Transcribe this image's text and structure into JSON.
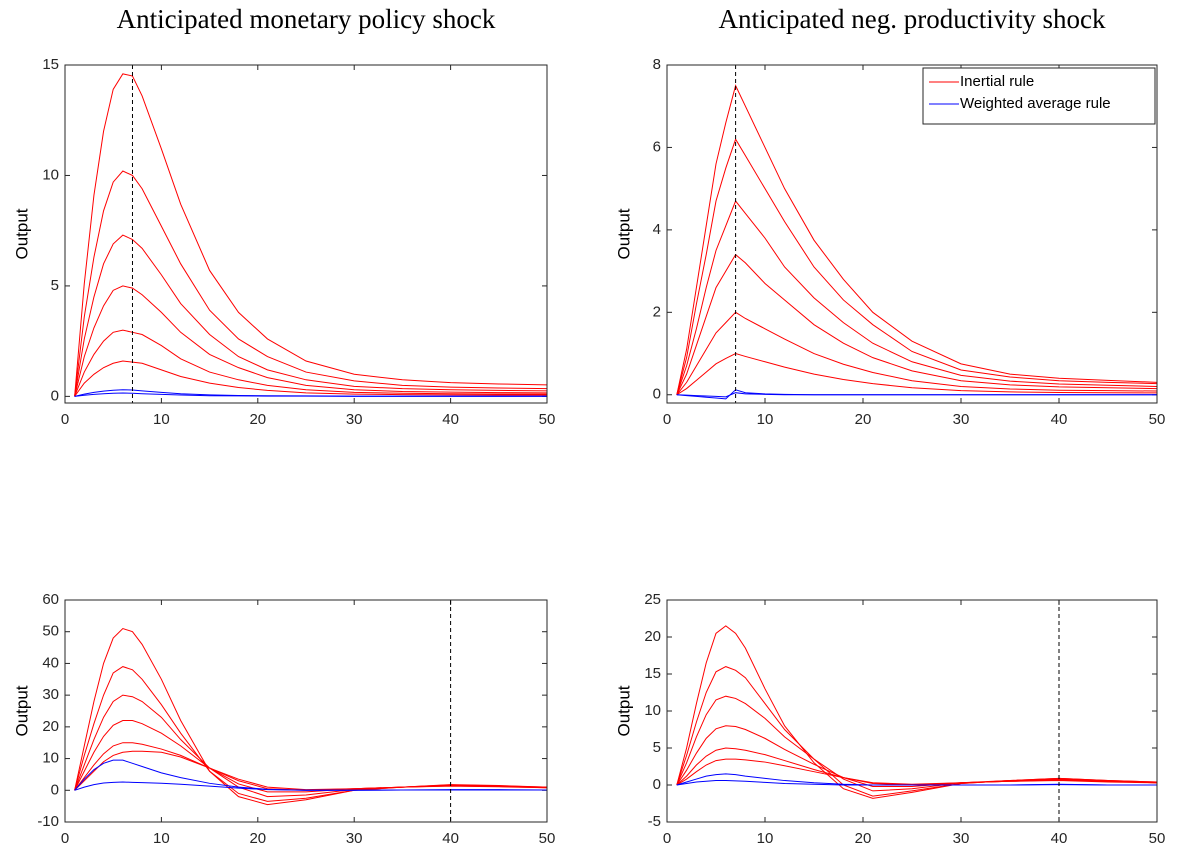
{
  "chart_data": [
    {
      "type": "line",
      "title": "Anticipated monetary policy shock",
      "ylabel": "Output",
      "x": [
        1,
        2,
        3,
        4,
        5,
        6,
        7,
        8,
        10,
        12,
        15,
        18,
        21,
        25,
        30,
        35,
        40,
        45,
        50
      ],
      "xlim": [
        0,
        50
      ],
      "xticks": [
        0,
        10,
        20,
        30,
        40,
        50
      ],
      "ylim": [
        -0.3,
        15
      ],
      "yticks": [
        0,
        5,
        10,
        15
      ],
      "vline": 7,
      "series": [
        {
          "color": "#ff0000",
          "lines": [
            [
              0,
              5.1,
              9.1,
              12.0,
              13.9,
              14.6,
              14.5,
              13.6,
              11.2,
              8.7,
              5.7,
              3.8,
              2.6,
              1.6,
              1.0,
              0.75,
              0.62,
              0.56,
              0.52
            ],
            [
              0,
              3.6,
              6.3,
              8.4,
              9.7,
              10.2,
              10.0,
              9.4,
              7.7,
              6.0,
              3.9,
              2.6,
              1.8,
              1.1,
              0.7,
              0.5,
              0.42,
              0.38,
              0.35
            ],
            [
              0,
              2.6,
              4.5,
              6.0,
              6.9,
              7.3,
              7.1,
              6.7,
              5.5,
              4.2,
              2.8,
              1.8,
              1.2,
              0.75,
              0.45,
              0.35,
              0.3,
              0.27,
              0.25
            ],
            [
              0,
              1.8,
              3.1,
              4.1,
              4.8,
              5.0,
              4.9,
              4.6,
              3.8,
              2.9,
              1.9,
              1.3,
              0.85,
              0.5,
              0.3,
              0.22,
              0.19,
              0.17,
              0.16
            ],
            [
              0,
              1.1,
              1.9,
              2.5,
              2.9,
              3.0,
              2.9,
              2.8,
              2.3,
              1.7,
              1.1,
              0.75,
              0.5,
              0.3,
              0.18,
              0.14,
              0.12,
              0.11,
              0.1
            ],
            [
              0,
              0.6,
              1.0,
              1.3,
              1.5,
              1.6,
              1.55,
              1.5,
              1.2,
              0.9,
              0.6,
              0.4,
              0.27,
              0.16,
              0.1,
              0.08,
              0.07,
              0.06,
              0.06
            ]
          ]
        },
        {
          "color": "#0000ff",
          "lines": [
            [
              0,
              0.1,
              0.18,
              0.24,
              0.28,
              0.3,
              0.29,
              0.25,
              0.18,
              0.12,
              0.07,
              0.04,
              0.03,
              0.02,
              0.01,
              0.01,
              0.01,
              0.01,
              0.01
            ],
            [
              0,
              0.05,
              0.09,
              0.12,
              0.14,
              0.15,
              0.14,
              0.12,
              0.09,
              0.06,
              0.03,
              0.02,
              0.01,
              0.01,
              0,
              0,
              0,
              0,
              0
            ]
          ]
        }
      ]
    },
    {
      "type": "line",
      "title": "Anticipated neg. productivity shock",
      "ylabel": "Output",
      "x": [
        1,
        2,
        3,
        4,
        5,
        6,
        7,
        8,
        10,
        12,
        15,
        18,
        21,
        25,
        30,
        35,
        40,
        45,
        50
      ],
      "xlim": [
        0,
        50
      ],
      "xticks": [
        0,
        10,
        20,
        30,
        40,
        50
      ],
      "ylim": [
        -0.2,
        8
      ],
      "yticks": [
        0,
        2,
        4,
        6,
        8
      ],
      "vline": 7,
      "legend": "upper right",
      "series": [
        {
          "name": "Inertial rule",
          "color": "#ff0000",
          "lines": [
            [
              0,
              1.1,
              2.6,
              4.1,
              5.6,
              6.6,
              7.5,
              7.0,
              6.0,
              5.0,
              3.75,
              2.8,
              2.0,
              1.3,
              0.75,
              0.5,
              0.4,
              0.35,
              0.3
            ],
            [
              0,
              0.9,
              2.2,
              3.4,
              4.7,
              5.5,
              6.2,
              5.8,
              5.0,
              4.2,
              3.1,
              2.3,
              1.7,
              1.05,
              0.6,
              0.43,
              0.34,
              0.3,
              0.27
            ],
            [
              0,
              0.7,
              1.6,
              2.6,
              3.5,
              4.1,
              4.7,
              4.4,
              3.8,
              3.1,
              2.35,
              1.75,
              1.25,
              0.8,
              0.47,
              0.33,
              0.26,
              0.23,
              0.2
            ],
            [
              0,
              0.5,
              1.2,
              1.9,
              2.6,
              3.0,
              3.4,
              3.2,
              2.7,
              2.3,
              1.7,
              1.25,
              0.9,
              0.58,
              0.34,
              0.24,
              0.19,
              0.17,
              0.15
            ],
            [
              0,
              0.3,
              0.7,
              1.1,
              1.5,
              1.75,
              2.0,
              1.85,
              1.6,
              1.35,
              1.0,
              0.74,
              0.54,
              0.34,
              0.2,
              0.14,
              0.11,
              0.1,
              0.09
            ],
            [
              0,
              0.15,
              0.35,
              0.55,
              0.75,
              0.88,
              1.0,
              0.93,
              0.8,
              0.67,
              0.5,
              0.37,
              0.27,
              0.17,
              0.1,
              0.07,
              0.055,
              0.05,
              0.045
            ]
          ]
        },
        {
          "name": "Weighted average rule",
          "color": "#0000ff",
          "lines": [
            [
              0,
              -0.02,
              -0.04,
              -0.06,
              -0.08,
              -0.1,
              0.12,
              0.05,
              0.02,
              0.01,
              0,
              0,
              0,
              0,
              0,
              0,
              0,
              0,
              0
            ],
            [
              0,
              -0.01,
              -0.02,
              -0.03,
              -0.04,
              -0.05,
              0.05,
              0.02,
              0.01,
              0,
              0,
              0,
              0,
              0,
              0,
              0,
              0,
              0,
              0
            ]
          ]
        }
      ]
    },
    {
      "type": "line",
      "ylabel": "Output",
      "x": [
        1,
        2,
        3,
        4,
        5,
        6,
        7,
        8,
        10,
        12,
        15,
        18,
        21,
        25,
        30,
        35,
        40,
        45,
        50
      ],
      "xlim": [
        0,
        50
      ],
      "xticks": [
        0,
        10,
        20,
        30,
        40,
        50
      ],
      "ylim": [
        -10,
        60
      ],
      "yticks": [
        -10,
        0,
        10,
        20,
        30,
        40,
        50,
        60
      ],
      "vline": 40,
      "series": [
        {
          "color": "#ff0000",
          "lines": [
            [
              0,
              14,
              28,
              40,
              48,
              51,
              50,
              46,
              35,
              22,
              6,
              -2,
              -4.5,
              -3,
              0,
              1,
              1.8,
              1.5,
              1
            ],
            [
              0,
              11,
              21,
              30,
              37,
              39,
              38,
              35,
              27,
              18,
              6,
              -1,
              -3.5,
              -2.5,
              0,
              1,
              1.7,
              1.4,
              1
            ],
            [
              0,
              8,
              16,
              23,
              28,
              30,
              29.5,
              28,
              23,
              16,
              7,
              1,
              -2,
              -1.5,
              0.3,
              1,
              1.6,
              1.3,
              0.9
            ],
            [
              0,
              6,
              12,
              17,
              20.5,
              22,
              22,
              21,
              18,
              14,
              7,
              2,
              -0.5,
              -0.5,
              0.5,
              1,
              1.5,
              1.2,
              0.9
            ],
            [
              0,
              4,
              8,
              11.5,
              14,
              15,
              15,
              14.5,
              13,
              11,
              7,
              3,
              0.5,
              0,
              0.5,
              1,
              1.4,
              1.2,
              0.8
            ],
            [
              0,
              3,
              6,
              9,
              11,
              12,
              12.3,
              12.3,
              12,
              10.5,
              7,
              3.5,
              1,
              0.2,
              0.5,
              1,
              1.3,
              1.1,
              0.8
            ]
          ]
        },
        {
          "color": "#0000ff",
          "lines": [
            [
              0,
              3.5,
              6.5,
              8.5,
              9.5,
              9.5,
              8.5,
              7.5,
              5.5,
              4,
              2.2,
              1,
              0.3,
              0,
              0,
              0.1,
              0.2,
              0.2,
              0.1
            ],
            [
              0,
              1,
              1.8,
              2.3,
              2.5,
              2.6,
              2.5,
              2.4,
              2.2,
              1.9,
              1.3,
              0.7,
              0.2,
              0,
              0,
              0.1,
              0.1,
              0.1,
              0.1
            ]
          ]
        }
      ]
    },
    {
      "type": "line",
      "ylabel": "Output",
      "x": [
        1,
        2,
        3,
        4,
        5,
        6,
        7,
        8,
        10,
        12,
        15,
        18,
        21,
        25,
        30,
        35,
        40,
        45,
        50
      ],
      "xlim": [
        0,
        50
      ],
      "xticks": [
        0,
        10,
        20,
        30,
        40,
        50
      ],
      "ylim": [
        -5,
        25
      ],
      "yticks": [
        -5,
        0,
        5,
        10,
        15,
        20,
        25
      ],
      "vline": 40,
      "series": [
        {
          "color": "#ff0000",
          "lines": [
            [
              0,
              5,
              11,
              16.5,
              20.5,
              21.5,
              20.5,
              18.5,
              13,
              8,
              3,
              -0.5,
              -1.8,
              -1,
              0.2,
              0.6,
              0.9,
              0.6,
              0.4
            ],
            [
              0,
              4,
              8.5,
              12.5,
              15.3,
              16,
              15.5,
              14.5,
              11,
              7.5,
              3.5,
              0,
              -1.5,
              -0.8,
              0.2,
              0.6,
              0.9,
              0.6,
              0.4
            ],
            [
              0,
              3,
              6.5,
              9.5,
              11.5,
              12,
              11.7,
              11,
              9,
              6.5,
              3.5,
              0.8,
              -0.8,
              -0.5,
              0.3,
              0.6,
              0.8,
              0.5,
              0.3
            ],
            [
              0,
              2,
              4.3,
              6.3,
              7.6,
              8,
              7.9,
              7.5,
              6.3,
              4.8,
              2.8,
              1,
              -0.2,
              -0.2,
              0.3,
              0.5,
              0.7,
              0.5,
              0.3
            ],
            [
              0,
              1.2,
              2.7,
              3.9,
              4.7,
              5,
              4.9,
              4.7,
              4.1,
              3.3,
              2.1,
              1,
              0.2,
              0,
              0.3,
              0.5,
              0.7,
              0.5,
              0.3
            ],
            [
              0,
              0.8,
              1.8,
              2.7,
              3.3,
              3.5,
              3.5,
              3.4,
              3.1,
              2.6,
              1.8,
              1,
              0.3,
              0.1,
              0.3,
              0.5,
              0.6,
              0.4,
              0.3
            ]
          ]
        },
        {
          "color": "#0000ff",
          "lines": [
            [
              0,
              0.4,
              0.8,
              1.2,
              1.4,
              1.5,
              1.4,
              1.2,
              0.9,
              0.6,
              0.3,
              0.1,
              0,
              0,
              0,
              0,
              0.1,
              0,
              0
            ],
            [
              0,
              0.2,
              0.4,
              0.5,
              0.6,
              0.6,
              0.55,
              0.5,
              0.35,
              0.2,
              0.1,
              0,
              0,
              0,
              0,
              0,
              0.05,
              0,
              0
            ]
          ]
        }
      ]
    }
  ]
}
